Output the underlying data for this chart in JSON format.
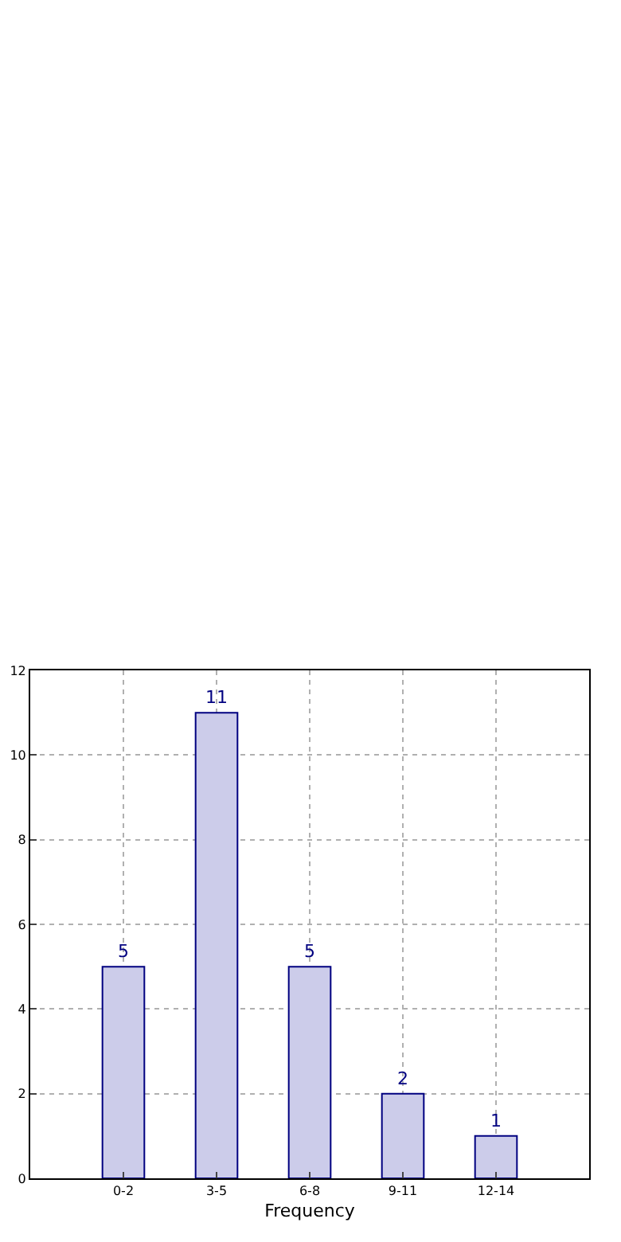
{
  "chart_data": {
    "type": "bar",
    "xlabel": "Frequency",
    "categories": [
      "0-2",
      "3-5",
      "6-8",
      "9-11",
      "12-14"
    ],
    "series": [
      {
        "color": "#ccccea",
        "values": [
          5,
          11,
          5,
          2,
          1
        ]
      }
    ],
    "ylim": [
      0,
      12
    ],
    "yticks": [
      0,
      2,
      4,
      6,
      8,
      10,
      12
    ],
    "grid": true,
    "data_labels": true
  }
}
